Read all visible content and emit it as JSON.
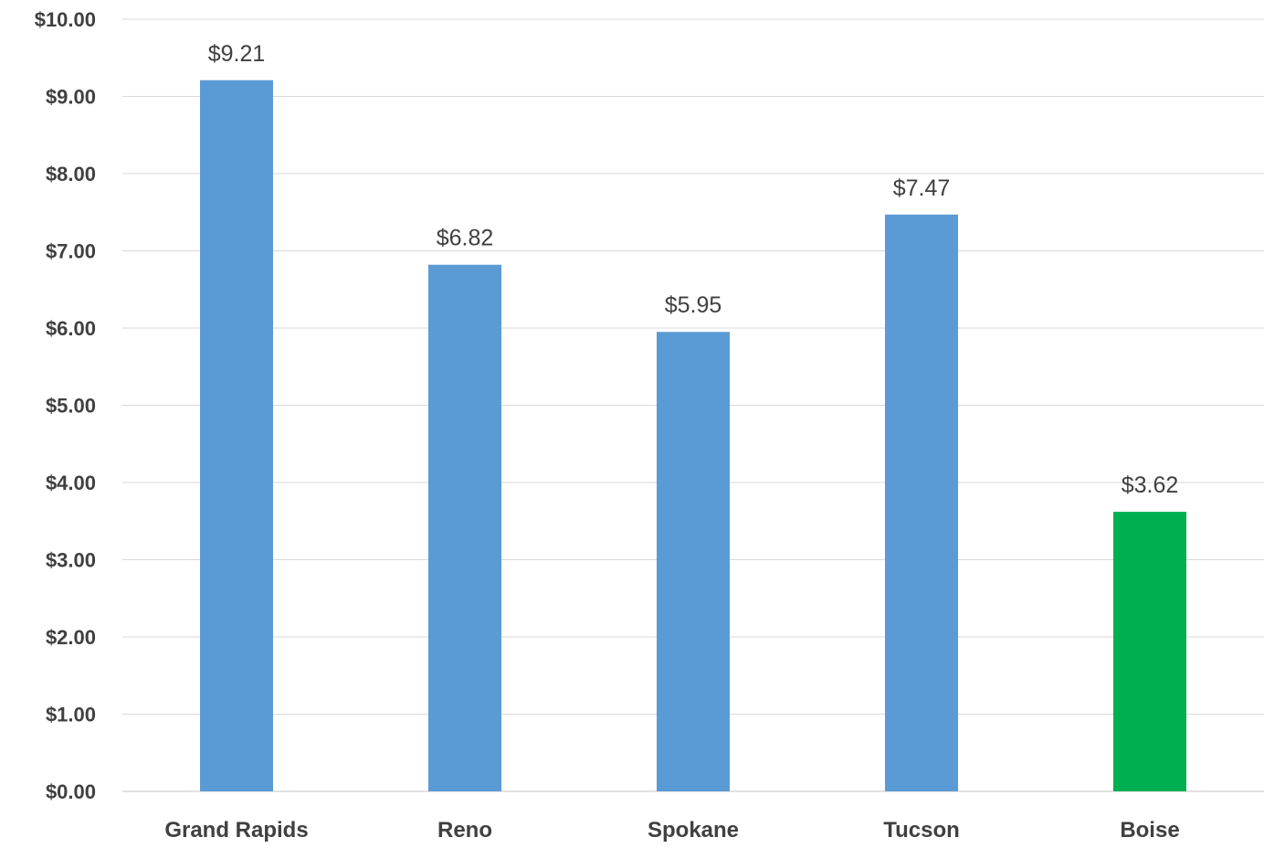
{
  "chart_data": {
    "type": "bar",
    "categories": [
      "Grand Rapids",
      "Reno",
      "Spokane",
      "Tucson",
      "Boise"
    ],
    "values": [
      9.21,
      6.82,
      5.95,
      7.47,
      3.62
    ],
    "data_labels": [
      "$9.21",
      "$6.82",
      "$5.95",
      "$7.47",
      "$3.62"
    ],
    "bar_colors": [
      "#5b9bd5",
      "#5b9bd5",
      "#5b9bd5",
      "#5b9bd5",
      "#00b050"
    ],
    "title": "",
    "xlabel": "",
    "ylabel": "",
    "ylim": [
      0,
      10
    ],
    "yticks": [
      0,
      1,
      2,
      3,
      4,
      5,
      6,
      7,
      8,
      9,
      10
    ],
    "ytick_labels": [
      "$0.00",
      "$1.00",
      "$2.00",
      "$3.00",
      "$4.00",
      "$5.00",
      "$6.00",
      "$7.00",
      "$8.00",
      "$9.00",
      "$10.00"
    ],
    "grid": true,
    "legend": "none"
  },
  "colors": {
    "gridline": "#d9d9d9",
    "axis_line": "#d9d9d9",
    "text": "#404040"
  }
}
